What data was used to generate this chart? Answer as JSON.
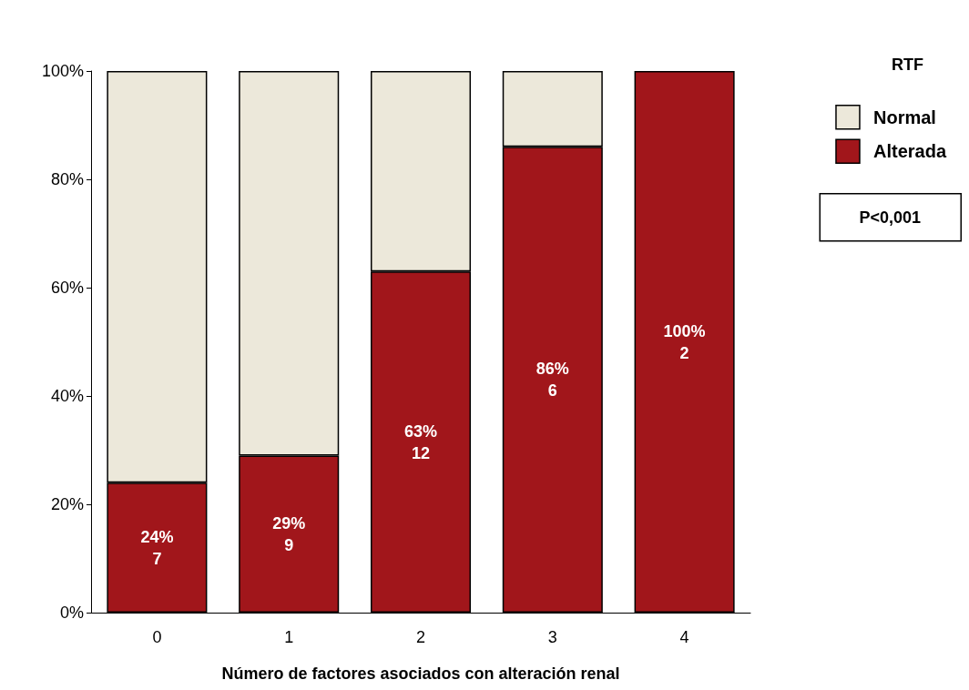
{
  "chart_data": {
    "type": "bar",
    "stacked": true,
    "xlabel": "Número de factores asociados con alteración renal",
    "legend_title": "RTF",
    "legend": "right",
    "grid": false,
    "categories": [
      "0",
      "1",
      "2",
      "3",
      "4"
    ],
    "series": [
      {
        "name": "Alterada",
        "color": "#a1161b",
        "values": [
          24,
          29,
          63,
          86,
          100
        ],
        "value_labels": [
          "24%\n7",
          "29%\n9",
          "63%\n12",
          "86%\n6",
          "100%\n2"
        ]
      },
      {
        "name": "Normal",
        "color": "#ece8da",
        "values": [
          76,
          71,
          37,
          14,
          0
        ]
      }
    ],
    "ylim": [
      0,
      100
    ],
    "yticks": [
      {
        "value": 0,
        "label": "0%"
      },
      {
        "value": 20,
        "label": "20%"
      },
      {
        "value": 40,
        "label": "40%"
      },
      {
        "value": 60,
        "label": "60%"
      },
      {
        "value": 80,
        "label": "80%"
      },
      {
        "value": 100,
        "label": "100%"
      }
    ],
    "annotations": [
      "P<0,001"
    ]
  }
}
